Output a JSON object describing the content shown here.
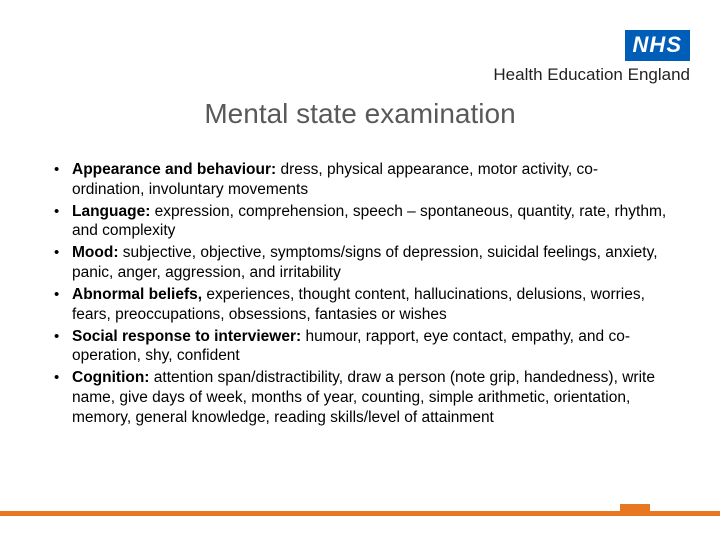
{
  "logo": {
    "nhs_text": "NHS",
    "nhs_bg": "#005eb8",
    "nhs_fg": "#ffffff",
    "subtitle": "Health Education England",
    "sub_color": "#231f20"
  },
  "title": {
    "text": "Mental state examination",
    "color": "#595959",
    "fontsize": 28
  },
  "bullets": [
    {
      "bold": "Appearance and behaviour:",
      "rest": "  dress, physical appearance, motor activity, co-ordination, involuntary movements"
    },
    {
      "bold": "Language:",
      "rest": "  expression, comprehension, speech – spontaneous, quantity, rate, rhythm, and complexity"
    },
    {
      "bold": "Mood:",
      "rest": "  subjective, objective, symptoms/signs of depression, suicidal feelings, anxiety, panic, anger, aggression, and irritability"
    },
    {
      "bold": "Abnormal beliefs,",
      "rest": " experiences, thought content, hallucinations, delusions, worries, fears, preoccupations, obsessions, fantasies or wishes"
    },
    {
      "bold": "Social response to interviewer:",
      "rest": " humour, rapport, eye contact, empathy, and co-operation, shy, confident"
    },
    {
      "bold": "Cognition:",
      "rest": " attention span/distractibility, draw a person (note grip, handedness), write name, give days of week, months of year, counting, simple arithmetic, orientation, memory, general knowledge, reading skills/level of attainment"
    }
  ],
  "footer": {
    "bar_color": "#e87722"
  }
}
